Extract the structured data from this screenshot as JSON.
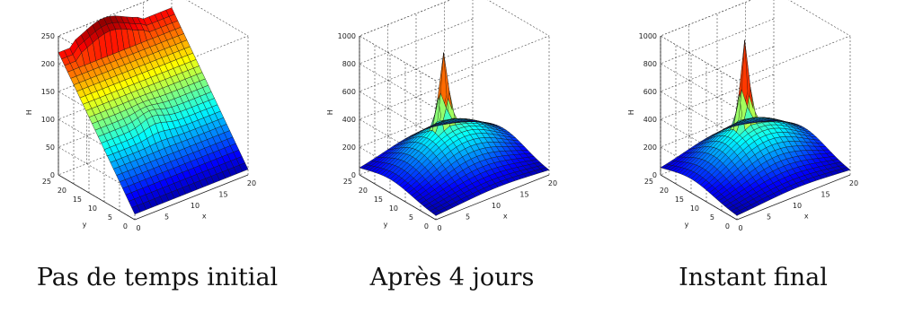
{
  "chart_data": [
    {
      "type": "surface",
      "caption": "Pas de temps initial",
      "xlabel": "x",
      "ylabel": "y",
      "zlabel": "H",
      "xlim": [
        0,
        20
      ],
      "ylim": [
        0,
        25
      ],
      "zlim": [
        0,
        250
      ],
      "xticks": [
        0,
        5,
        10,
        15,
        20
      ],
      "yticks": [
        0,
        5,
        10,
        15,
        20,
        25
      ],
      "zticks": [
        0,
        50,
        100,
        150,
        200,
        250
      ],
      "surface": "tilted plane: H approximately 220 at y=25 decreasing to about 10 at y=0, ridge near x=2..15 at top edge",
      "colormap": "jet",
      "grid": true
    },
    {
      "type": "surface",
      "caption": "Après 4 jours",
      "xlabel": "x",
      "ylabel": "y",
      "zlabel": "H",
      "xlim": [
        0,
        20
      ],
      "ylim": [
        0,
        25
      ],
      "zlim": [
        0,
        1000
      ],
      "xticks": [
        0,
        5,
        10,
        15,
        20
      ],
      "yticks": [
        0,
        5,
        10,
        15,
        20,
        25
      ],
      "zticks": [
        0,
        200,
        400,
        600,
        800,
        1000
      ],
      "surface": "dome peaking near center with a sharp spike to about 850",
      "colormap": "jet",
      "grid": true
    },
    {
      "type": "surface",
      "caption": "Instant final",
      "xlabel": "x",
      "ylabel": "y",
      "zlabel": "H",
      "xlim": [
        0,
        20
      ],
      "ylim": [
        0,
        25
      ],
      "zlim": [
        0,
        1000
      ],
      "xticks": [
        0,
        5,
        10,
        15,
        20
      ],
      "yticks": [
        0,
        5,
        10,
        15,
        20,
        25
      ],
      "zticks": [
        0,
        200,
        400,
        600,
        800,
        1000
      ],
      "surface": "dome peaking near center with a sharp spike to about 950",
      "colormap": "jet",
      "grid": true
    }
  ]
}
